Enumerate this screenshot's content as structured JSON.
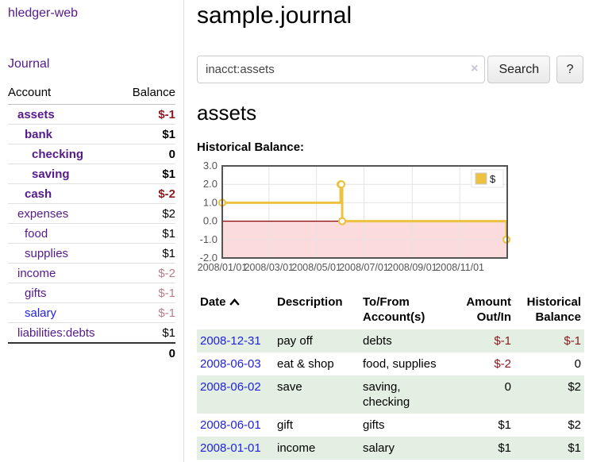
{
  "sidebar": {
    "title": "hledger-web",
    "nav_journal": "Journal",
    "header": {
      "account": "Account",
      "balance": "Balance"
    },
    "accounts": [
      {
        "name": "assets",
        "depth": 1,
        "bold": true,
        "blue": false,
        "balance": "$-1",
        "balance_style": "neg-dark"
      },
      {
        "name": "bank",
        "depth": 2,
        "bold": true,
        "blue": false,
        "balance": "$1",
        "balance_style": ""
      },
      {
        "name": "checking",
        "depth": 3,
        "bold": true,
        "blue": false,
        "balance": "0",
        "balance_style": ""
      },
      {
        "name": "saving",
        "depth": 3,
        "bold": true,
        "blue": false,
        "balance": "$1",
        "balance_style": ""
      },
      {
        "name": "cash",
        "depth": 2,
        "bold": true,
        "blue": false,
        "balance": "$-2",
        "balance_style": "neg-dark"
      },
      {
        "name": "expenses",
        "depth": 1,
        "bold": false,
        "blue": false,
        "balance": "$2",
        "balance_style": ""
      },
      {
        "name": "food",
        "depth": 2,
        "bold": false,
        "blue": false,
        "balance": "$1",
        "balance_style": ""
      },
      {
        "name": "supplies",
        "depth": 2,
        "bold": false,
        "blue": false,
        "balance": "$1",
        "balance_style": ""
      },
      {
        "name": "income",
        "depth": 1,
        "bold": false,
        "blue": false,
        "balance": "$-2",
        "balance_style": "neg-rose"
      },
      {
        "name": "gifts",
        "depth": 2,
        "bold": false,
        "blue": false,
        "balance": "$-1",
        "balance_style": "neg-rose"
      },
      {
        "name": "salary",
        "depth": 2,
        "bold": false,
        "blue": true,
        "balance": "$-1",
        "balance_style": "neg-rose"
      },
      {
        "name": "liabilities:debts",
        "depth": 1,
        "bold": false,
        "blue": false,
        "balance": "$1",
        "balance_style": ""
      }
    ],
    "total": "0"
  },
  "main": {
    "title": "sample.journal",
    "search": {
      "value": "inacct:assets",
      "clear": "×",
      "search_button": "Search",
      "help_button": "?"
    },
    "account_heading": "assets",
    "chart_label": "Historical Balance:"
  },
  "register": {
    "headers": {
      "date": "Date",
      "description": "Description",
      "account": "To/From Account(s)",
      "amount": "Amount Out/In",
      "balance": "Historical Balance"
    },
    "rows": [
      {
        "date": "2008-12-31",
        "description": "pay off",
        "accounts": "debts",
        "amount": "$-1",
        "amount_style": "neg-dark",
        "balance": "$-1",
        "balance_style": "neg-dark",
        "shade": true
      },
      {
        "date": "2008-06-03",
        "description": "eat & shop",
        "accounts": "food, supplies",
        "amount": "$-2",
        "amount_style": "neg-dark",
        "balance": "0",
        "balance_style": "",
        "shade": false
      },
      {
        "date": "2008-06-02",
        "description": "save",
        "accounts": "saving, checking",
        "amount": "0",
        "amount_style": "",
        "balance": "$2",
        "balance_style": "",
        "shade": true
      },
      {
        "date": "2008-06-01",
        "description": "gift",
        "accounts": "gifts",
        "amount": "$1",
        "amount_style": "",
        "balance": "$2",
        "balance_style": "",
        "shade": false
      },
      {
        "date": "2008-01-01",
        "description": "income",
        "accounts": "salary",
        "amount": "$1",
        "amount_style": "",
        "balance": "$1",
        "balance_style": "",
        "shade": true
      }
    ]
  },
  "chart_data": {
    "type": "line",
    "title": "Historical Balance:",
    "step": true,
    "series": [
      {
        "name": "$",
        "points": [
          [
            "2008-01-01",
            1
          ],
          [
            "2008-06-01",
            2
          ],
          [
            "2008-06-02",
            2
          ],
          [
            "2008-06-03",
            0
          ],
          [
            "2008-12-31",
            -1
          ]
        ]
      }
    ],
    "x_domain": [
      "2008-01-01",
      "2009-01-01"
    ],
    "x_ticks": [
      {
        "date": "2008-01-01",
        "label": "2008/01/01"
      },
      {
        "date": "2008-03-01",
        "label": "2008/03/01"
      },
      {
        "date": "2008-05-01",
        "label": "2008/05/01"
      },
      {
        "date": "2008-07-01",
        "label": "2008/07/01"
      },
      {
        "date": "2008-09-01",
        "label": "2008/09/01"
      },
      {
        "date": "2008-11-01",
        "label": "2008/11/01"
      }
    ],
    "y_ticks": [
      {
        "value": 3,
        "label": "3.0"
      },
      {
        "value": 2,
        "label": "2.0"
      },
      {
        "value": 1,
        "label": "1.0"
      },
      {
        "value": 0,
        "label": "0.0"
      },
      {
        "value": -1,
        "label": "-1.0"
      },
      {
        "value": -2,
        "label": "-2.0"
      }
    ],
    "ylim": [
      -2,
      3
    ],
    "grid": true,
    "legend_position": "top-right",
    "colors": {
      "line": "#edc240",
      "marker_fill": "#ffffff",
      "negative_fill": "#fbdbdb",
      "zero_line": "#8b0000",
      "grid": "#e4e4e4",
      "border": "#545454",
      "tick_text": "#545454"
    }
  }
}
